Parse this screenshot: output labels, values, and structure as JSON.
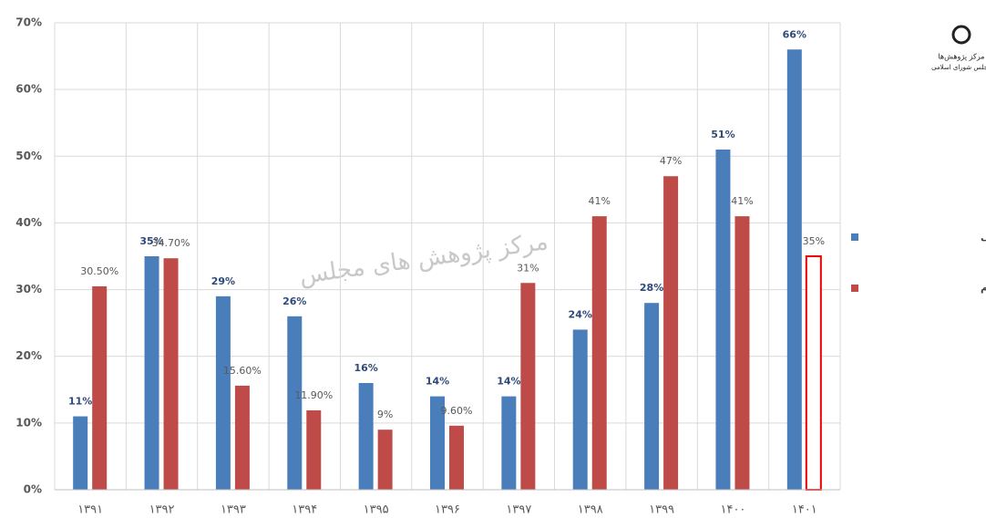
{
  "chart_data": {
    "type": "bar",
    "watermark": "مرکز پژوهش های مجلس",
    "logo_text": [
      "مرکز پژوهش‌ها",
      "مجلس شورای اسلامی"
    ],
    "categories": [
      "۱۳۹۱",
      "۱۳۹۲",
      "۱۳۹۳",
      "۱۳۹۴",
      "۱۳۹۵",
      "۱۳۹۶",
      "۱۳۹۷",
      "۱۳۹۸",
      "۱۳۹۹",
      "۱۴۰۰",
      "۱۴۰۱"
    ],
    "series": [
      {
        "name": "رصد رشد درآمدهای مالیاتی",
        "color": "#4a7ebb",
        "label_color": "#2f4a7a",
        "values": [
          11,
          35,
          29,
          26,
          16,
          14,
          14,
          24,
          28,
          51,
          66
        ],
        "value_labels": [
          "11%",
          "35%",
          "29%",
          "26%",
          "16%",
          "14%",
          "14%",
          "24%",
          "28%",
          "51%",
          "66%"
        ]
      },
      {
        "name": "نرخ تورم",
        "color": "#be4b48",
        "label_color": "#595959",
        "hollow_indices": [
          10
        ],
        "values": [
          30.5,
          34.7,
          15.6,
          11.9,
          9,
          9.6,
          31,
          41,
          47,
          41,
          35
        ],
        "value_labels": [
          "30.50%",
          "34.70%",
          "15.60%",
          "11.90%",
          "9%",
          "9.60%",
          "31%",
          "41%",
          "47%",
          "41%",
          "35%"
        ]
      }
    ],
    "ylim": [
      0,
      70
    ],
    "yticks": [
      {
        "value": 0,
        "label": "0%"
      },
      {
        "value": 10,
        "label": "10%"
      },
      {
        "value": 20,
        "label": "20%"
      },
      {
        "value": 30,
        "label": "30%"
      },
      {
        "value": 40,
        "label": "40%"
      },
      {
        "value": 50,
        "label": "50%"
      },
      {
        "value": 60,
        "label": "60%"
      },
      {
        "value": 70,
        "label": "70%"
      }
    ],
    "grid": true,
    "legend": "right"
  }
}
